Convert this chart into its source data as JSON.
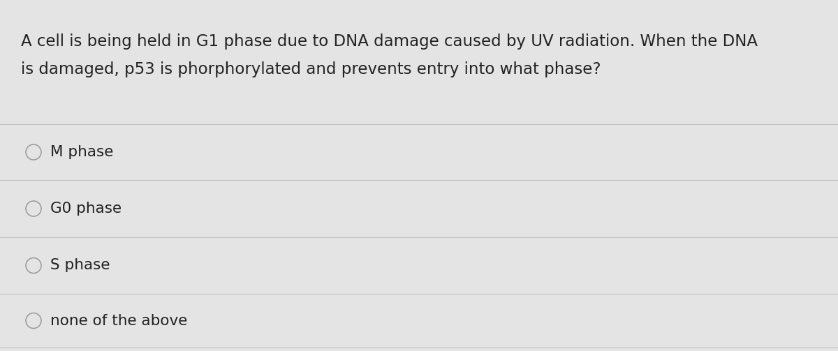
{
  "question_line1": "A cell is being held in G1 phase due to DNA damage caused by UV radiation. When the DNA",
  "question_line2": "is damaged, p53 is phorphorylated and prevents entry into what phase?",
  "options": [
    "M phase",
    "G0 phase",
    "S phase",
    "none of the above"
  ],
  "background_color": "#d8d8d8",
  "panel_color": "#e4e4e4",
  "text_color": "#222222",
  "line_color": "#c0c0c0",
  "circle_edge_color": "#999999",
  "question_fontsize": 16.5,
  "option_fontsize": 15.5,
  "fig_width": 12.0,
  "fig_height": 5.03
}
